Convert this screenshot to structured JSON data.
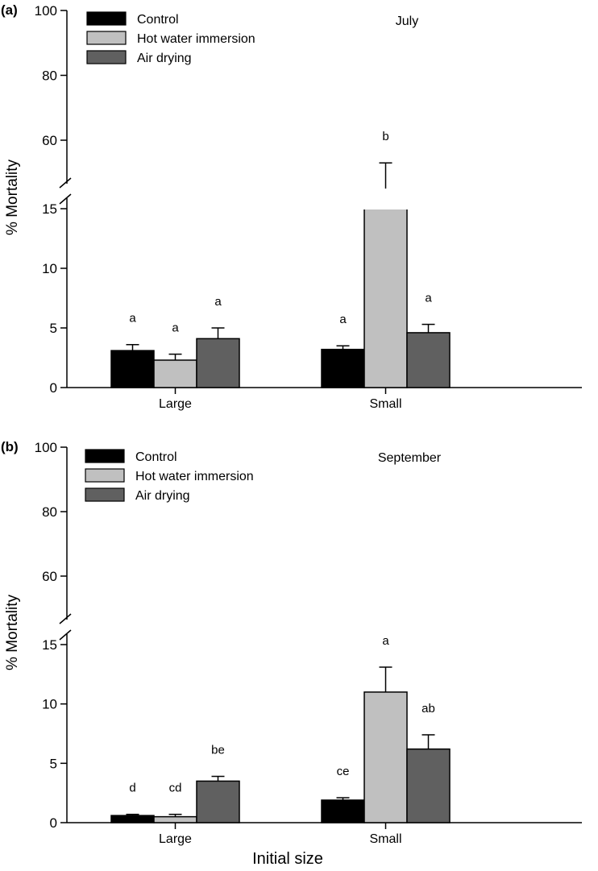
{
  "x_axis_title": "Initial size",
  "colors": {
    "control": "#000000",
    "hot_water": "#c0c0c0",
    "air_drying": "#606060",
    "axis": "#000000",
    "background": "#ffffff"
  },
  "chart_data": [
    {
      "type": "bar",
      "panel_label": "(a)",
      "title": "July",
      "ylabel": "% Mortality",
      "xlabel": "",
      "categories": [
        "Large",
        "Small"
      ],
      "y_axis_break": {
        "lower_range": [
          0,
          15
        ],
        "upper_range": [
          50,
          100
        ]
      },
      "yticks": [
        "0",
        "5",
        "10",
        "15",
        "60",
        "80",
        "100"
      ],
      "legend_position": "top-left",
      "series": [
        {
          "name": "Control",
          "values": [
            3.1,
            3.2
          ],
          "errors": [
            0.5,
            0.3
          ],
          "labels": [
            "a",
            "a"
          ]
        },
        {
          "name": "Hot water immersion",
          "values": [
            2.3,
            50
          ],
          "errors": [
            0.5,
            6.5
          ],
          "labels": [
            "a",
            "b"
          ]
        },
        {
          "name": "Air drying",
          "values": [
            4.1,
            4.6
          ],
          "errors": [
            0.9,
            0.7
          ],
          "labels": [
            "a",
            "a"
          ]
        }
      ]
    },
    {
      "type": "bar",
      "panel_label": "(b)",
      "title": "September",
      "ylabel": "% Mortality",
      "xlabel": "Initial size",
      "categories": [
        "Large",
        "Small"
      ],
      "y_axis_break": {
        "lower_range": [
          0,
          15
        ],
        "upper_range": [
          50,
          100
        ]
      },
      "yticks": [
        "0",
        "5",
        "10",
        "15",
        "60",
        "80",
        "100"
      ],
      "legend_position": "top-left",
      "series": [
        {
          "name": "Control",
          "values": [
            0.6,
            1.9
          ],
          "errors": [
            0.1,
            0.2
          ],
          "labels": [
            "d",
            "ce"
          ]
        },
        {
          "name": "Hot water immersion",
          "values": [
            0.5,
            11.0
          ],
          "errors": [
            0.2,
            2.1
          ],
          "labels": [
            "cd",
            "a"
          ]
        },
        {
          "name": "Air drying",
          "values": [
            3.5,
            6.2
          ],
          "errors": [
            0.4,
            1.2
          ],
          "labels": [
            "be",
            "ab"
          ]
        }
      ]
    }
  ]
}
